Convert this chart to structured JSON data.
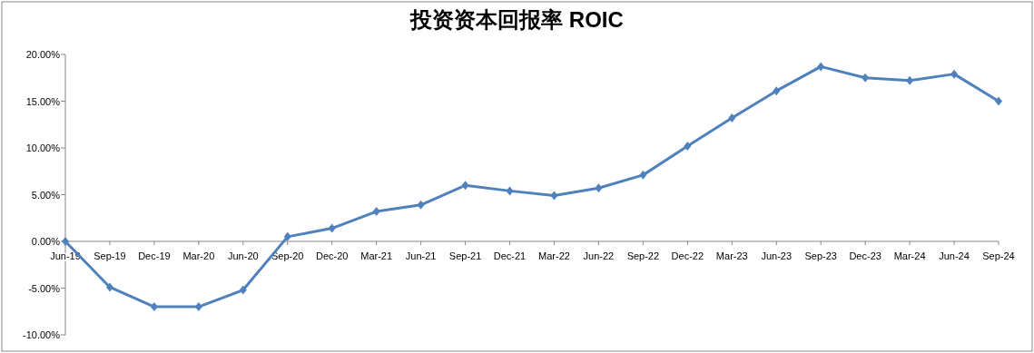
{
  "chart_data": {
    "type": "line",
    "title": "投资资本回报率 ROIC",
    "categories": [
      "Jun-19",
      "Sep-19",
      "Dec-19",
      "Mar-20",
      "Jun-20",
      "Sep-20",
      "Dec-20",
      "Mar-21",
      "Jun-21",
      "Sep-21",
      "Dec-21",
      "Mar-22",
      "Jun-22",
      "Sep-22",
      "Dec-22",
      "Mar-23",
      "Jun-23",
      "Sep-23",
      "Dec-23",
      "Mar-24",
      "Jun-24",
      "Sep-24"
    ],
    "series": [
      {
        "color": "#4f81bd",
        "values": [
          0,
          -4.9,
          -7.0,
          -7.0,
          -5.2,
          0.5,
          1.4,
          3.2,
          3.9,
          6.0,
          5.4,
          4.9,
          5.7,
          7.1,
          10.2,
          13.2,
          16.1,
          18.7,
          17.5,
          17.2,
          17.9,
          15.0
        ]
      }
    ],
    "ylim": [
      -10,
      20
    ],
    "yticks": [
      {
        "value": -10,
        "label": "-10.00%"
      },
      {
        "value": -5,
        "label": "-5.00%"
      },
      {
        "value": 0,
        "label": "0.00%"
      },
      {
        "value": 5,
        "label": "5.00%"
      },
      {
        "value": 10,
        "label": "10.00%"
      },
      {
        "value": 15,
        "label": "15.00%"
      },
      {
        "value": 20,
        "label": "20.00%"
      }
    ],
    "marker": "diamond",
    "line_style": "solid"
  }
}
